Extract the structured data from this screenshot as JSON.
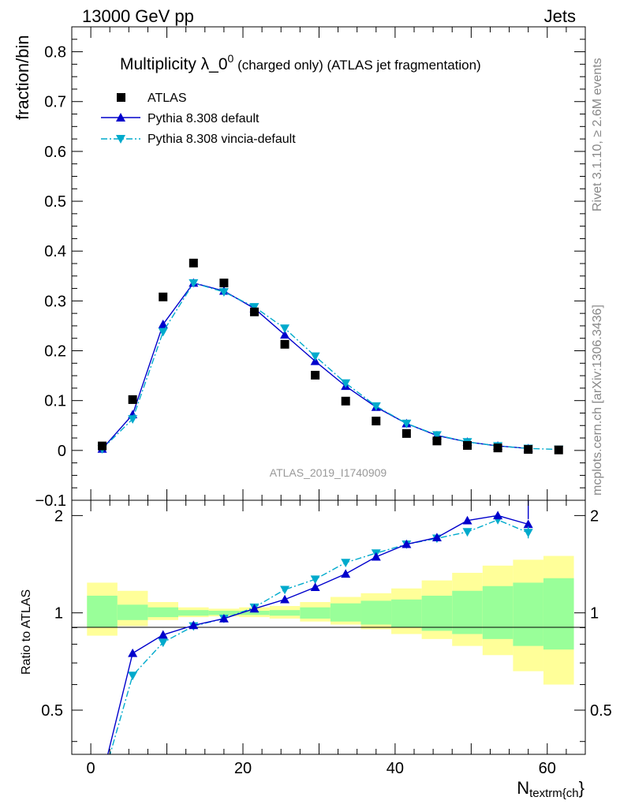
{
  "header": {
    "left": "13000 GeV pp",
    "right": "Jets"
  },
  "side_texts": {
    "rivet": "Rivet 3.1.10, ≥ 2.6M events",
    "mcplots": "mcplots.cern.ch [arXiv:1306.3436]"
  },
  "analysis_id": "ATLAS_2019_I1740909",
  "chart_data": [
    {
      "panel": "main",
      "type": "scatter",
      "title_main": "Multiplicity λ_0",
      "title_sup": "0",
      "title_rest": " (charged only) (ATLAS jet fragmentation)",
      "ylabel": "fraction/bin",
      "xlim": [
        -2.5,
        65
      ],
      "ylim": [
        -0.1,
        0.85
      ],
      "y_ticks": [
        -0.1,
        0,
        0.1,
        0.2,
        0.3,
        0.4,
        0.5,
        0.6,
        0.7,
        0.8
      ],
      "y_tick_labels": [
        "−0.1",
        "0",
        "0.1",
        "0.2",
        "0.3",
        "0.4",
        "0.5",
        "0.6",
        "0.7",
        "0.8"
      ],
      "legend_position": "top-left",
      "series": [
        {
          "name": "ATLAS",
          "style": "square-marker",
          "color": "#000000",
          "x": [
            1.5,
            5.5,
            9.5,
            13.5,
            17.5,
            21.5,
            25.5,
            29.5,
            33.5,
            37.5,
            41.5,
            45.5,
            49.5,
            53.5,
            57.5,
            61.5
          ],
          "y": [
            0.009,
            0.102,
            0.308,
            0.376,
            0.336,
            0.278,
            0.213,
            0.151,
            0.099,
            0.059,
            0.034,
            0.019,
            0.01,
            0.005,
            0.002,
            0.001
          ]
        },
        {
          "name": "Pythia 8.308 default",
          "style": "solid-line-triangle-up",
          "color": "#0000cc",
          "x": [
            1.5,
            5.5,
            9.5,
            13.5,
            17.5,
            21.5,
            25.5,
            29.5,
            33.5,
            37.5,
            41.5,
            45.5,
            49.5,
            53.5,
            57.5
          ],
          "y": [
            0.003,
            0.072,
            0.253,
            0.336,
            0.32,
            0.285,
            0.232,
            0.179,
            0.129,
            0.087,
            0.054,
            0.03,
            0.017,
            0.009,
            0.004
          ]
        },
        {
          "name": "Pythia 8.308 vincia-default",
          "style": "dashdot-line-triangle-down",
          "color": "#00aacc",
          "x": [
            1.5,
            5.5,
            9.5,
            13.5,
            17.5,
            21.5,
            25.5,
            29.5,
            33.5,
            37.5,
            41.5,
            45.5,
            49.5,
            53.5,
            57.5,
            61.5
          ],
          "y": [
            0.003,
            0.063,
            0.238,
            0.336,
            0.318,
            0.288,
            0.245,
            0.189,
            0.135,
            0.089,
            0.054,
            0.031,
            0.017,
            0.009,
            0.004,
            0.002
          ]
        }
      ]
    },
    {
      "panel": "ratio",
      "type": "line",
      "ylabel": "Ratio to ATLAS",
      "xlabel": "N",
      "xlabel_sub": "textrm{ch",
      "xlabel_tail": "}",
      "xlim": [
        -2.5,
        65
      ],
      "ylim": [
        0.365,
        2.23
      ],
      "y_scale": "log",
      "x_ticks": [
        0,
        20,
        40,
        60
      ],
      "x_tick_labels": [
        "0",
        "20",
        "40",
        "60"
      ],
      "y_ticks": [
        0.5,
        1,
        2
      ],
      "y_tick_labels": [
        "0.5",
        "1",
        "2"
      ],
      "bins": [
        [
          -0.5,
          3.5
        ],
        [
          3.5,
          7.5
        ],
        [
          7.5,
          11.5
        ],
        [
          11.5,
          15.5
        ],
        [
          15.5,
          19.5
        ],
        [
          19.5,
          23.5
        ],
        [
          23.5,
          27.5
        ],
        [
          27.5,
          31.5
        ],
        [
          31.5,
          35.5
        ],
        [
          35.5,
          39.5
        ],
        [
          39.5,
          43.5
        ],
        [
          43.5,
          47.5
        ],
        [
          47.5,
          51.5
        ],
        [
          51.5,
          55.5
        ],
        [
          55.5,
          59.5
        ],
        [
          59.5,
          63.5
        ]
      ],
      "band_inner_color": "#99ff99",
      "band_outer_color": "#ffff99",
      "band_inner": [
        [
          0.9,
          1.13
        ],
        [
          0.95,
          1.06
        ],
        [
          0.97,
          1.04
        ],
        [
          0.98,
          1.02
        ],
        [
          0.985,
          1.015
        ],
        [
          0.985,
          1.015
        ],
        [
          0.98,
          1.02
        ],
        [
          0.96,
          1.04
        ],
        [
          0.94,
          1.07
        ],
        [
          0.92,
          1.09
        ],
        [
          0.9,
          1.1
        ],
        [
          0.88,
          1.13
        ],
        [
          0.86,
          1.17
        ],
        [
          0.83,
          1.21
        ],
        [
          0.79,
          1.24
        ],
        [
          0.77,
          1.28
        ]
      ],
      "band_outer": [
        [
          0.85,
          1.24
        ],
        [
          0.91,
          1.17
        ],
        [
          0.95,
          1.08
        ],
        [
          0.97,
          1.04
        ],
        [
          0.975,
          1.03
        ],
        [
          0.97,
          1.04
        ],
        [
          0.96,
          1.05
        ],
        [
          0.94,
          1.08
        ],
        [
          0.92,
          1.12
        ],
        [
          0.89,
          1.15
        ],
        [
          0.86,
          1.19
        ],
        [
          0.83,
          1.26
        ],
        [
          0.79,
          1.33
        ],
        [
          0.74,
          1.4
        ],
        [
          0.66,
          1.46
        ],
        [
          0.6,
          1.5
        ]
      ],
      "series": [
        {
          "name": "Pythia 8.308 default",
          "style": "solid-line-triangle-up",
          "color": "#0000cc",
          "x": [
            1.5,
            5.5,
            9.5,
            13.5,
            17.5,
            21.5,
            25.5,
            29.5,
            33.5,
            37.5,
            41.5,
            45.5,
            49.5,
            53.5,
            57.5
          ],
          "y": [
            0.31,
            0.75,
            0.855,
            0.915,
            0.96,
            1.03,
            1.1,
            1.2,
            1.32,
            1.49,
            1.63,
            1.71,
            1.93,
            2.0,
            1.88
          ]
        },
        {
          "name": "Pythia 8.308 vincia-default",
          "style": "dashdot-line-triangle-down",
          "color": "#00aacc",
          "x": [
            1.5,
            5.5,
            9.5,
            13.5,
            17.5,
            21.5,
            25.5,
            29.5,
            33.5,
            37.5,
            41.5,
            45.5,
            49.5,
            53.5,
            57.5
          ],
          "y": [
            0.3,
            0.64,
            0.81,
            0.91,
            0.96,
            1.04,
            1.18,
            1.27,
            1.43,
            1.53,
            1.63,
            1.7,
            1.78,
            1.94,
            1.77
          ]
        }
      ]
    }
  ]
}
